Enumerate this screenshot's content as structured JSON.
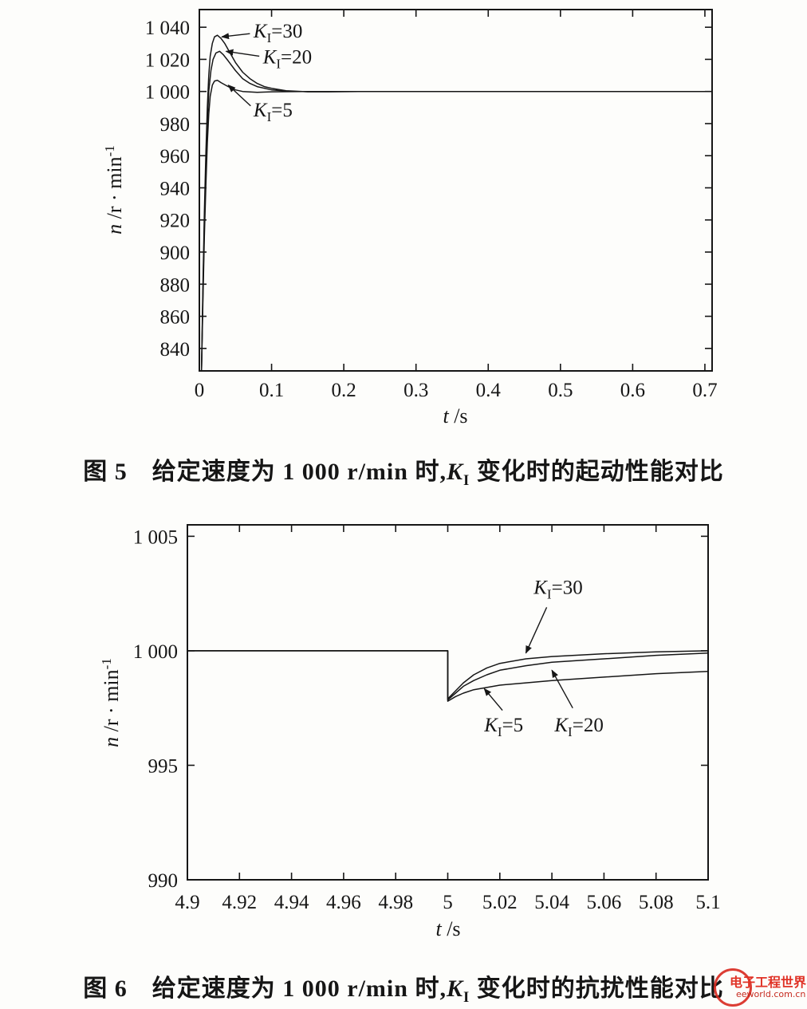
{
  "figure5": {
    "caption": {
      "pre": "图 5　给定速度为 1 000 r/min 时,",
      "k_base": "K",
      "k_sub": "I",
      "post": " 变化时的起动性能对比"
    }
  },
  "figure6": {
    "caption": {
      "pre": "图 6　给定速度为 1 000 r/min 时,",
      "k_base": "K",
      "k_sub": "I",
      "post": " 变化时的抗扰性能对比"
    }
  },
  "watermark": {
    "line1": "电子工程世界",
    "line2": "eeworld.com.cn",
    "color": "#d8281e"
  },
  "chart_data": [
    {
      "id": "fig5",
      "type": "line",
      "title": "",
      "xlabel_parts": {
        "it": "t",
        "rest": " /s"
      },
      "ylabel_parts": {
        "it": "n",
        "rest": " /r · min",
        "sup": "-1"
      },
      "xlim": [
        0,
        0.71
      ],
      "ylim": [
        826,
        1051
      ],
      "grid": false,
      "xticks": [
        {
          "v": 0,
          "label": "0"
        },
        {
          "v": 0.1,
          "label": "0.1"
        },
        {
          "v": 0.2,
          "label": "0.2"
        },
        {
          "v": 0.3,
          "label": "0.3"
        },
        {
          "v": 0.4,
          "label": "0.4"
        },
        {
          "v": 0.5,
          "label": "0.5"
        },
        {
          "v": 0.6,
          "label": "0.6"
        },
        {
          "v": 0.7,
          "label": "0.7"
        }
      ],
      "yticks": [
        {
          "v": 840,
          "label": "840"
        },
        {
          "v": 860,
          "label": "860"
        },
        {
          "v": 880,
          "label": "880"
        },
        {
          "v": 900,
          "label": "900"
        },
        {
          "v": 920,
          "label": "920"
        },
        {
          "v": 940,
          "label": "940"
        },
        {
          "v": 960,
          "label": "960"
        },
        {
          "v": 980,
          "label": "980"
        },
        {
          "v": 1000,
          "label": "1 000"
        },
        {
          "v": 1020,
          "label": "1 020"
        },
        {
          "v": 1040,
          "label": "1 040"
        }
      ],
      "series": [
        {
          "name": "K_I=30",
          "points": [
            [
              0.003,
              826
            ],
            [
              0.005,
              880
            ],
            [
              0.007,
              925
            ],
            [
              0.009,
              962
            ],
            [
              0.011,
              990
            ],
            [
              0.013,
              1010
            ],
            [
              0.015,
              1022
            ],
            [
              0.018,
              1030
            ],
            [
              0.021,
              1034
            ],
            [
              0.025,
              1035
            ],
            [
              0.03,
              1033
            ],
            [
              0.035,
              1030
            ],
            [
              0.04,
              1026
            ],
            [
              0.05,
              1018
            ],
            [
              0.06,
              1012
            ],
            [
              0.07,
              1008
            ],
            [
              0.08,
              1005
            ],
            [
              0.09,
              1003
            ],
            [
              0.1,
              1002
            ],
            [
              0.12,
              1000.5
            ],
            [
              0.15,
              999.8
            ],
            [
              0.18,
              999.8
            ],
            [
              0.22,
              1000
            ],
            [
              0.3,
              1000
            ],
            [
              0.4,
              1000
            ],
            [
              0.55,
              1000
            ],
            [
              0.708,
              1000
            ]
          ]
        },
        {
          "name": "K_I=20",
          "points": [
            [
              0.003,
              826
            ],
            [
              0.005,
              875
            ],
            [
              0.007,
              918
            ],
            [
              0.009,
              952
            ],
            [
              0.011,
              980
            ],
            [
              0.013,
              1000
            ],
            [
              0.016,
              1013
            ],
            [
              0.019,
              1020
            ],
            [
              0.023,
              1024
            ],
            [
              0.028,
              1025
            ],
            [
              0.033,
              1023
            ],
            [
              0.04,
              1019
            ],
            [
              0.05,
              1013
            ],
            [
              0.06,
              1008
            ],
            [
              0.07,
              1005
            ],
            [
              0.08,
              1003
            ],
            [
              0.1,
              1001
            ],
            [
              0.13,
              1000
            ],
            [
              0.18,
              1000
            ],
            [
              0.25,
              1000
            ],
            [
              0.4,
              1000
            ],
            [
              0.708,
              1000
            ]
          ]
        },
        {
          "name": "K_I=5",
          "points": [
            [
              0.003,
              826
            ],
            [
              0.005,
              870
            ],
            [
              0.007,
              910
            ],
            [
              0.009,
              942
            ],
            [
              0.011,
              968
            ],
            [
              0.013,
              986
            ],
            [
              0.015,
              997
            ],
            [
              0.018,
              1004
            ],
            [
              0.021,
              1006.5
            ],
            [
              0.025,
              1007
            ],
            [
              0.03,
              1005.5
            ],
            [
              0.04,
              1003
            ],
            [
              0.05,
              1001
            ],
            [
              0.06,
              1000
            ],
            [
              0.08,
              999.5
            ],
            [
              0.1,
              999.8
            ],
            [
              0.15,
              1000
            ],
            [
              0.25,
              1000
            ],
            [
              0.4,
              1000
            ],
            [
              0.708,
              1000
            ]
          ]
        }
      ],
      "annotations": [
        {
          "base": "K",
          "sub": "I",
          "rest": "=30",
          "tx": 0.075,
          "ty": 1038,
          "arrow": [
            0.07,
            1036,
            0.031,
            1034
          ]
        },
        {
          "base": "K",
          "sub": "I",
          "rest": "=20",
          "tx": 0.088,
          "ty": 1022,
          "arrow": [
            0.083,
            1022,
            0.037,
            1025
          ]
        },
        {
          "base": "K",
          "sub": "I",
          "rest": "=5",
          "tx": 0.075,
          "ty": 989,
          "arrow": [
            0.071,
            991,
            0.04,
            1004
          ]
        }
      ]
    },
    {
      "id": "fig6",
      "type": "line",
      "title": "",
      "xlabel_parts": {
        "it": "t",
        "rest": " /s"
      },
      "ylabel_parts": {
        "it": "n",
        "rest": " /r · min",
        "sup": "-1"
      },
      "xlim": [
        4.9,
        5.1
      ],
      "ylim": [
        990,
        1005.5
      ],
      "grid": false,
      "xticks": [
        {
          "v": 4.9,
          "label": "4.9"
        },
        {
          "v": 4.92,
          "label": "4.92"
        },
        {
          "v": 4.94,
          "label": "4.94"
        },
        {
          "v": 4.96,
          "label": "4.96"
        },
        {
          "v": 4.98,
          "label": "4.98"
        },
        {
          "v": 5.0,
          "label": "5"
        },
        {
          "v": 5.02,
          "label": "5.02"
        },
        {
          "v": 5.04,
          "label": "5.04"
        },
        {
          "v": 5.06,
          "label": "5.06"
        },
        {
          "v": 5.08,
          "label": "5.08"
        },
        {
          "v": 5.1,
          "label": "5.1"
        }
      ],
      "yticks": [
        {
          "v": 990,
          "label": "990"
        },
        {
          "v": 995,
          "label": "995"
        },
        {
          "v": 1000,
          "label": "1 000"
        },
        {
          "v": 1005,
          "label": "1 005"
        }
      ],
      "series": [
        {
          "name": "K_I=30",
          "points": [
            [
              4.9,
              1000
            ],
            [
              4.95,
              1000
            ],
            [
              4.99,
              1000
            ],
            [
              5.0,
              1000
            ],
            [
              5.0,
              997.9
            ],
            [
              5.003,
              998.25
            ],
            [
              5.006,
              998.6
            ],
            [
              5.01,
              998.95
            ],
            [
              5.015,
              999.25
            ],
            [
              5.02,
              999.45
            ],
            [
              5.03,
              999.65
            ],
            [
              5.04,
              999.75
            ],
            [
              5.06,
              999.87
            ],
            [
              5.08,
              999.95
            ],
            [
              5.1,
              1000.0
            ]
          ]
        },
        {
          "name": "K_I=20",
          "points": [
            [
              4.9,
              1000
            ],
            [
              4.96,
              1000
            ],
            [
              5.0,
              1000
            ],
            [
              5.0,
              997.85
            ],
            [
              5.003,
              998.15
            ],
            [
              5.006,
              998.45
            ],
            [
              5.01,
              998.7
            ],
            [
              5.015,
              998.95
            ],
            [
              5.02,
              999.15
            ],
            [
              5.03,
              999.35
            ],
            [
              5.04,
              999.5
            ],
            [
              5.06,
              999.65
            ],
            [
              5.08,
              999.8
            ],
            [
              5.1,
              999.9
            ]
          ]
        },
        {
          "name": "K_I=5",
          "points": [
            [
              4.9,
              1000
            ],
            [
              4.97,
              1000
            ],
            [
              5.0,
              1000
            ],
            [
              5.0,
              997.8
            ],
            [
              5.003,
              998.0
            ],
            [
              5.006,
              998.15
            ],
            [
              5.01,
              998.3
            ],
            [
              5.02,
              998.5
            ],
            [
              5.03,
              998.6
            ],
            [
              5.04,
              998.7
            ],
            [
              5.06,
              998.85
            ],
            [
              5.08,
              999.0
            ],
            [
              5.1,
              999.1
            ]
          ]
        }
      ],
      "annotations": [
        {
          "base": "K",
          "sub": "I",
          "rest": "=30",
          "tx": 5.033,
          "ty": 1002.8,
          "arrow": [
            5.038,
            1001.9,
            5.03,
            999.9
          ]
        },
        {
          "base": "K",
          "sub": "I",
          "rest": "=5",
          "tx": 5.014,
          "ty": 996.8,
          "arrow": [
            5.021,
            997.4,
            5.014,
            998.35
          ]
        },
        {
          "base": "K",
          "sub": "I",
          "rest": "=20",
          "tx": 5.041,
          "ty": 996.8,
          "arrow": [
            5.048,
            997.5,
            5.04,
            999.15
          ]
        }
      ]
    }
  ]
}
